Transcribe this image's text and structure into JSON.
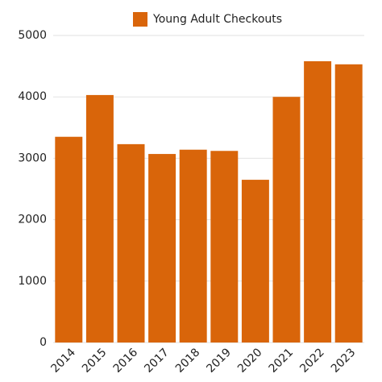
{
  "chart_data": {
    "type": "bar",
    "categories": [
      "2014",
      "2015",
      "2016",
      "2017",
      "2018",
      "2019",
      "2020",
      "2021",
      "2022",
      "2023"
    ],
    "series": [
      {
        "name": "Young Adult Checkouts",
        "color": "#d9650a",
        "values": [
          3350,
          4030,
          3230,
          3070,
          3140,
          3120,
          2650,
          4000,
          4580,
          4530
        ]
      }
    ],
    "ylim": [
      0,
      5000
    ],
    "yticks": [
      0,
      1000,
      2000,
      3000,
      4000,
      5000
    ],
    "grid": true,
    "legend": "top"
  }
}
